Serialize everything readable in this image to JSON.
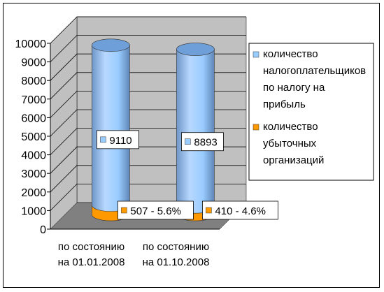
{
  "chart_data": {
    "type": "bar",
    "style": "3d-cylinder",
    "categories": [
      [
        "по состоянию",
        "на 01.01.2008"
      ],
      [
        "по состоянию",
        "на 01.10.2008"
      ]
    ],
    "series": [
      {
        "name": [
          "количество",
          "налогоплательщиков",
          "по налогу на",
          "прибыль"
        ],
        "values": [
          9110,
          8893
        ],
        "labels": [
          "9110",
          "8893"
        ],
        "color": "#99ccff"
      },
      {
        "name": [
          "количество",
          "убыточных",
          "организаций"
        ],
        "values": [
          507,
          410
        ],
        "labels": [
          "507 -  5.6%",
          "410  - 4.6%"
        ],
        "color": "#ff9900"
      }
    ],
    "yticks": [
      "0",
      "1000",
      "2000",
      "3000",
      "4000",
      "5000",
      "6000",
      "7000",
      "8000",
      "9000",
      "10000"
    ],
    "ylim": [
      0,
      10000
    ],
    "grid": true,
    "legend": "right",
    "colors": {
      "wall": "#c0c0c0",
      "floor": "#808080",
      "tube": "#99ccff",
      "tube_dark": "#5b86b8",
      "tube_top": "#6f9fd8",
      "orange": "#ff9900"
    }
  }
}
